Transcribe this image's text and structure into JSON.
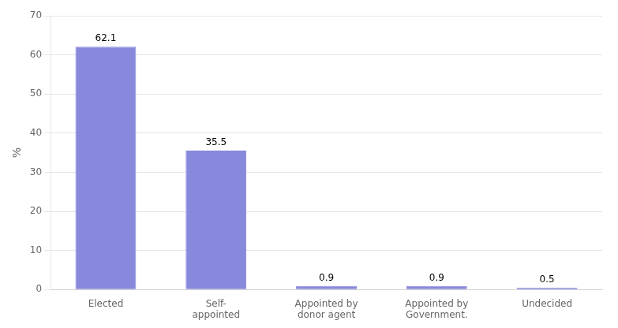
{
  "chart_data": {
    "type": "bar",
    "categories": [
      "Elected",
      "Self-\nappointed",
      "Appointed by\ndonor agent",
      "Appointed by\nGovernment.",
      "Undecided"
    ],
    "values": [
      62.1,
      35.5,
      0.9,
      0.9,
      0.5
    ],
    "color": "#8888dd",
    "ylabel": "%",
    "ylim": [
      0,
      70
    ],
    "yticks": [
      0,
      10,
      20,
      30,
      40,
      50,
      60,
      70
    ],
    "grid": true,
    "data_labels": true
  }
}
